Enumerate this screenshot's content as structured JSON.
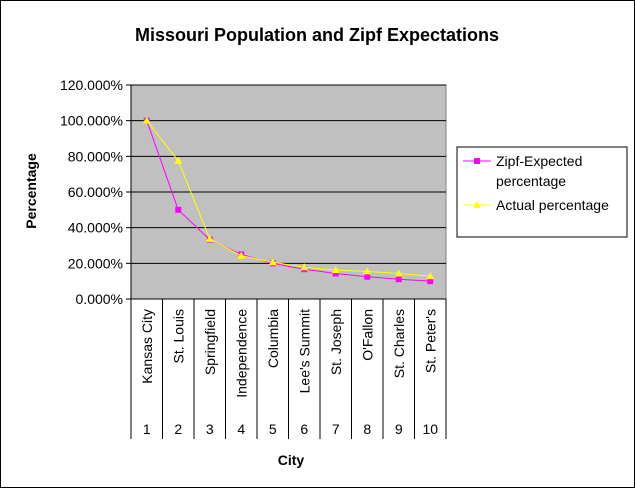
{
  "chart_data": {
    "type": "line",
    "title": "Missouri Population and Zipf Expectations",
    "xlabel": "City",
    "ylabel": "Percentage",
    "ylim": [
      0,
      120
    ],
    "y_ticks": [
      "0.000%",
      "20.000%",
      "40.000%",
      "60.000%",
      "80.000%",
      "100.000%",
      "120.000%"
    ],
    "grid": true,
    "legend_position": "right",
    "categories": [
      "Kansas City",
      "St. Louis",
      "Springfield",
      "Independence",
      "Columbia",
      "Lee's Summit",
      "St. Joseph",
      "O'Fallon",
      "St. Charles",
      "St. Peter's"
    ],
    "ranks": [
      "1",
      "2",
      "3",
      "4",
      "5",
      "6",
      "7",
      "8",
      "9",
      "10"
    ],
    "series": [
      {
        "name": "Zipf-Expected percentage",
        "color": "#ff00ff",
        "marker": "square",
        "values": [
          100,
          50,
          33.3,
          25,
          20,
          16.7,
          14.3,
          12.5,
          11.1,
          10
        ]
      },
      {
        "name": "Actual percentage",
        "color": "#ffff00",
        "marker": "triangle",
        "values": [
          100,
          77.5,
          33.7,
          24.3,
          20.6,
          17.8,
          16.2,
          15.5,
          14.3,
          12.8
        ]
      }
    ],
    "plot_background": "#c0c0c0"
  }
}
